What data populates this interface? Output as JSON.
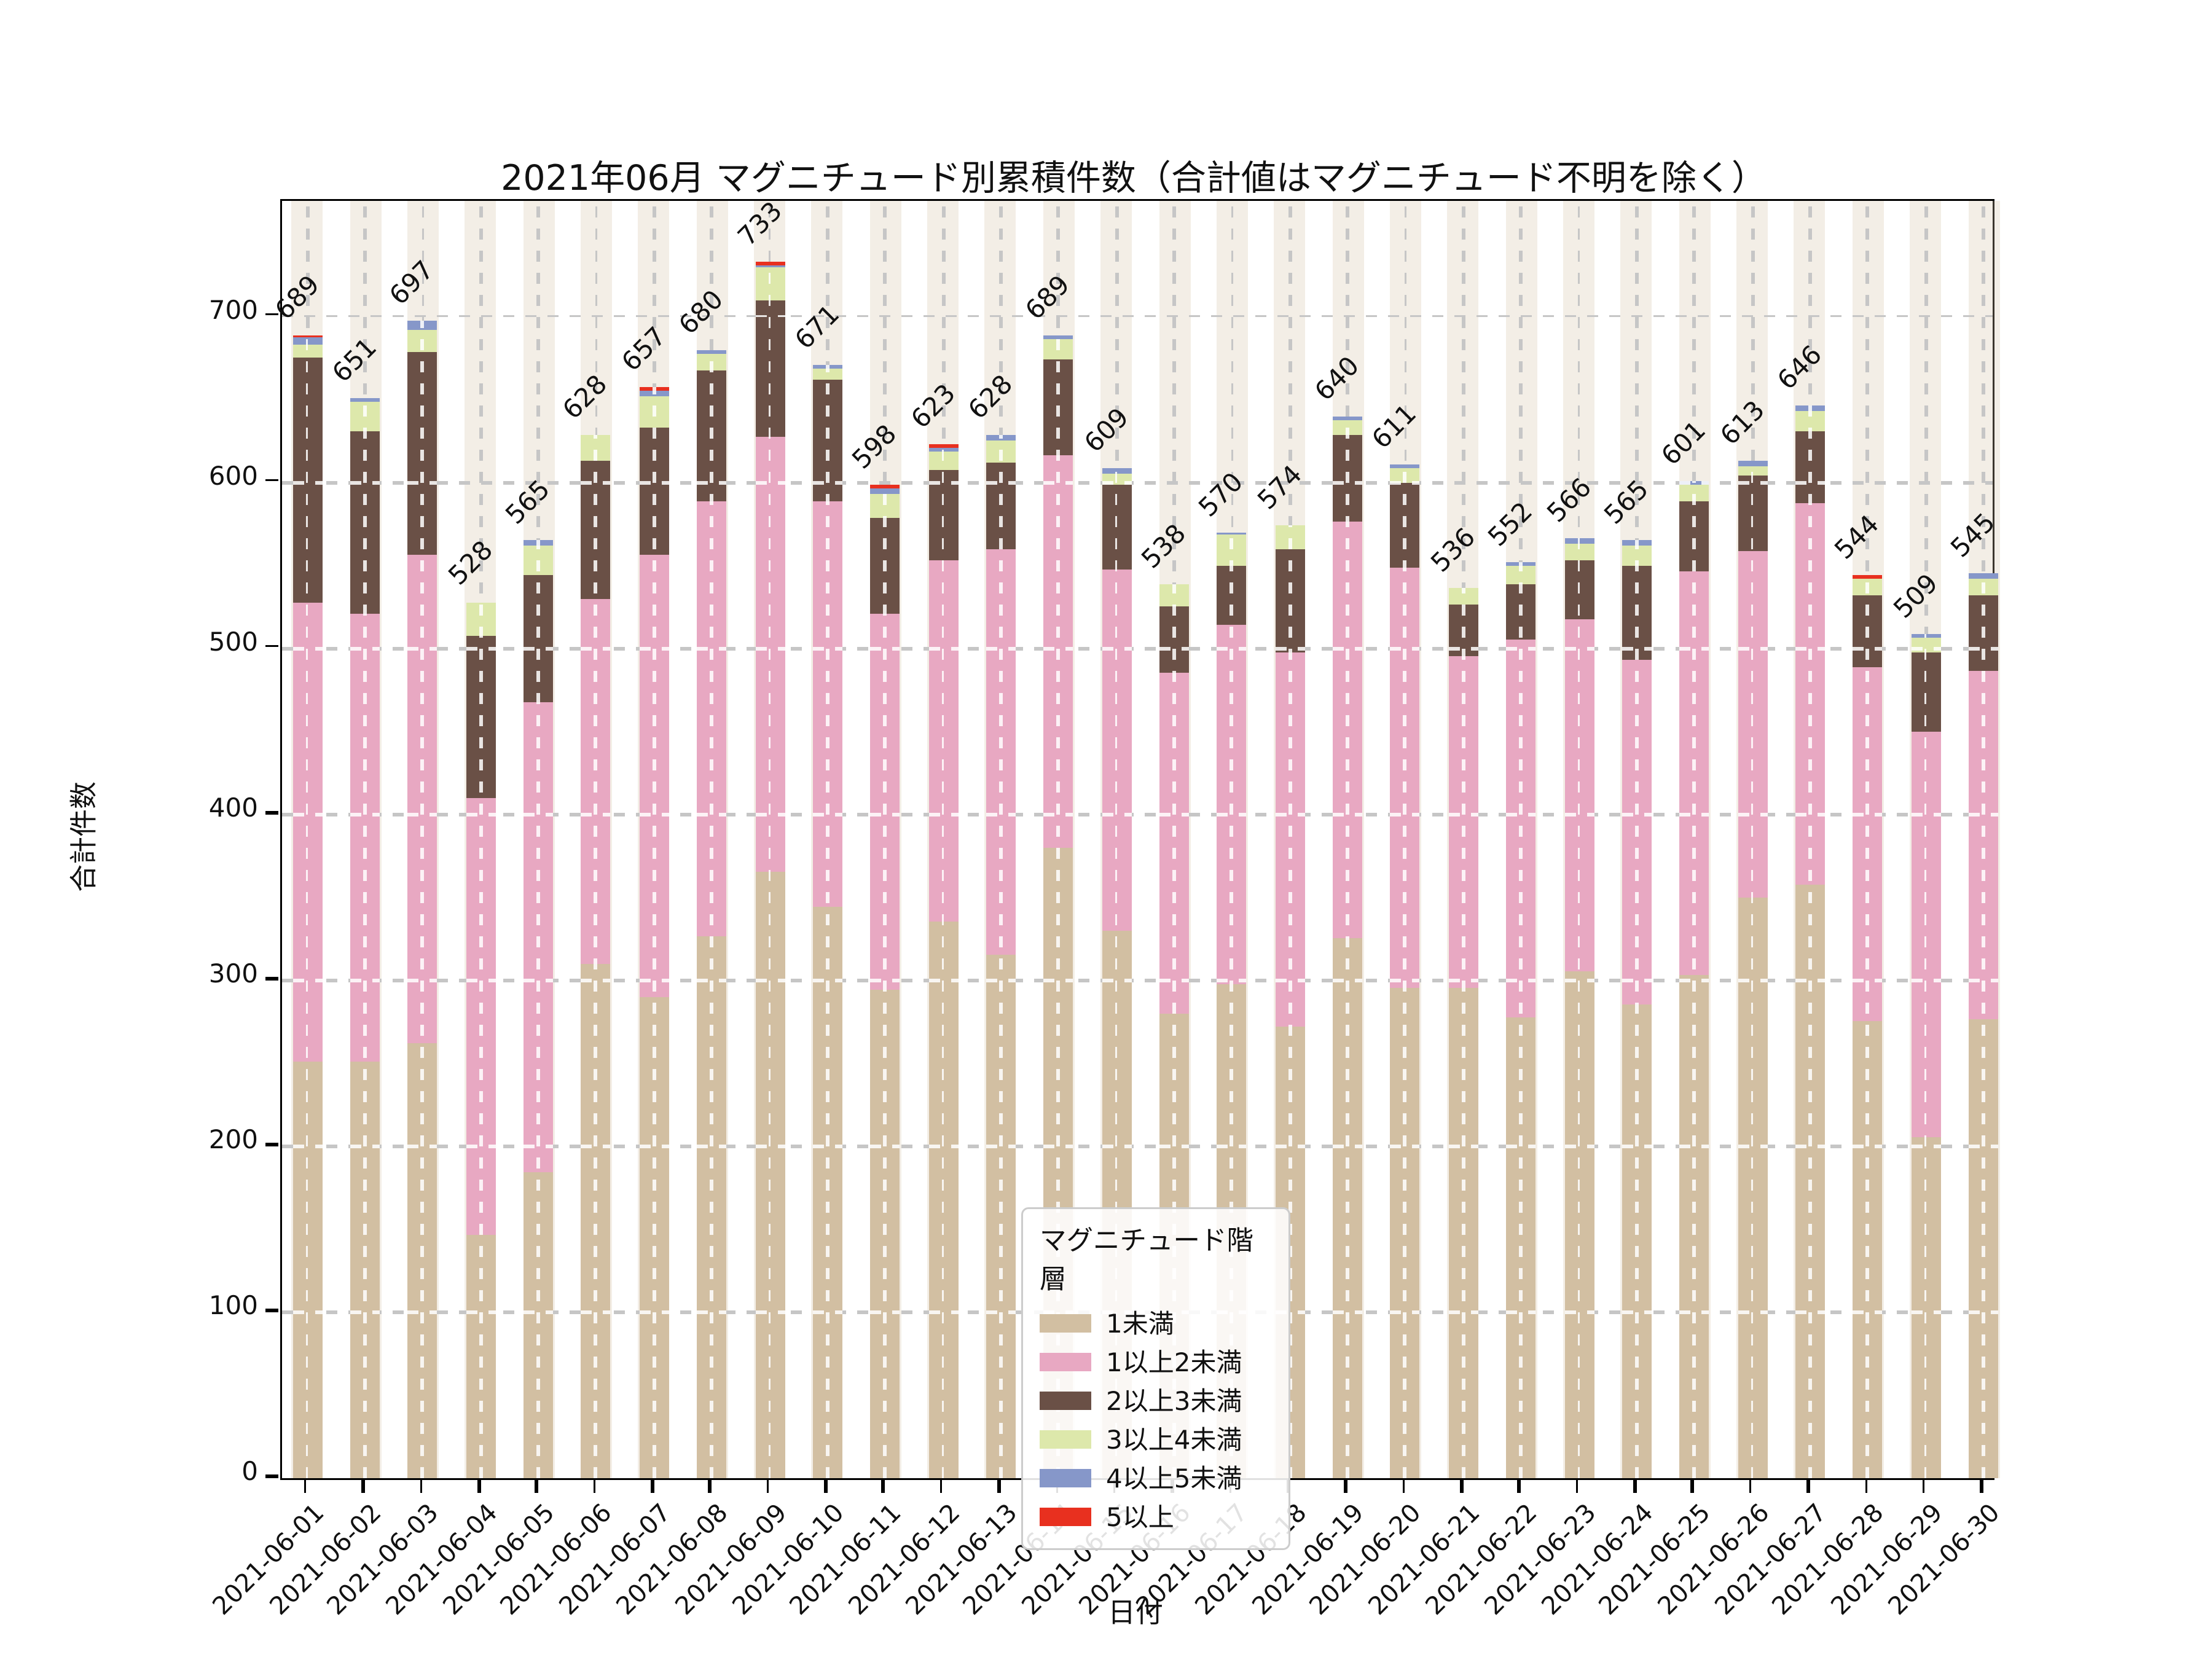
{
  "figure": {
    "title": "2021年06月 マグニチュード別累積件数（合計値はマグニチュード不明を除く）",
    "xlabel": "日付",
    "ylabel": "合計件数"
  },
  "chart_data": {
    "type": "bar",
    "stacked": true,
    "title": "2021年06月 マグニチュード別累積件数（合計値はマグニチュード不明を除く）",
    "xlabel": "日付",
    "ylabel": "合計件数",
    "ylim": [
      0,
      770
    ],
    "yticks": [
      0,
      100,
      200,
      300,
      400,
      500,
      600,
      700
    ],
    "grid": true,
    "legend_title": "マグニチュード階層",
    "legend_position": "lower center, inside plot",
    "categories": [
      "2021-06-01",
      "2021-06-02",
      "2021-06-03",
      "2021-06-04",
      "2021-06-05",
      "2021-06-06",
      "2021-06-07",
      "2021-06-08",
      "2021-06-09",
      "2021-06-10",
      "2021-06-11",
      "2021-06-12",
      "2021-06-13",
      "2021-06-14",
      "2021-06-15",
      "2021-06-16",
      "2021-06-17",
      "2021-06-18",
      "2021-06-19",
      "2021-06-20",
      "2021-06-21",
      "2021-06-22",
      "2021-06-23",
      "2021-06-24",
      "2021-06-25",
      "2021-06-26",
      "2021-06-27",
      "2021-06-28",
      "2021-06-29",
      "2021-06-30"
    ],
    "totals": [
      689,
      651,
      697,
      528,
      565,
      628,
      657,
      680,
      733,
      671,
      598,
      623,
      628,
      689,
      609,
      538,
      570,
      574,
      640,
      611,
      536,
      552,
      566,
      565,
      601,
      613,
      646,
      544,
      509,
      545
    ],
    "series": [
      {
        "name": "1未満",
        "color": "#d2bfa2",
        "values": [
          251,
          251,
          262,
          147,
          184,
          310,
          290,
          326,
          365,
          344,
          294,
          335,
          315,
          380,
          330,
          280,
          298,
          272,
          325,
          295,
          295,
          278,
          305,
          285,
          303,
          350,
          358,
          275,
          205,
          277
        ]
      },
      {
        "name": "1以上2未満",
        "color": "#e8a8c2",
        "values": [
          276,
          270,
          294,
          263,
          284,
          220,
          266,
          263,
          262,
          244,
          227,
          218,
          245,
          236,
          217,
          205,
          216,
          225,
          251,
          253,
          200,
          227,
          212,
          208,
          243,
          209,
          229,
          214,
          245,
          209
        ]
      },
      {
        "name": "2以上3未満",
        "color": "#6a5046",
        "values": [
          148,
          110,
          123,
          98,
          76,
          83,
          77,
          78,
          83,
          74,
          58,
          54,
          52,
          58,
          51,
          40,
          36,
          63,
          53,
          52,
          31,
          34,
          36,
          57,
          42,
          45,
          44,
          43,
          47,
          46
        ]
      },
      {
        "name": "3以上4未満",
        "color": "#dde8ab",
        "values": [
          8,
          17,
          13,
          20,
          18,
          15,
          19,
          10,
          19,
          6,
          14,
          12,
          13,
          12,
          7,
          13,
          18,
          14,
          8,
          8,
          10,
          11,
          10,
          12,
          10,
          6,
          12,
          10,
          9,
          10
        ]
      },
      {
        "name": "4以上5未満",
        "color": "#8697c9",
        "values": [
          4,
          3,
          5,
          0,
          3,
          0,
          3,
          3,
          2,
          3,
          3,
          2,
          3,
          3,
          4,
          0,
          2,
          0,
          3,
          3,
          0,
          2,
          3,
          3,
          3,
          3,
          3,
          0,
          3,
          3
        ]
      },
      {
        "name": "5以上",
        "color": "#e8301f",
        "values": [
          2,
          0,
          0,
          0,
          0,
          0,
          2,
          0,
          2,
          0,
          2,
          2,
          0,
          0,
          0,
          0,
          0,
          0,
          0,
          0,
          0,
          0,
          0,
          0,
          0,
          0,
          0,
          2,
          0,
          0
        ]
      }
    ]
  }
}
